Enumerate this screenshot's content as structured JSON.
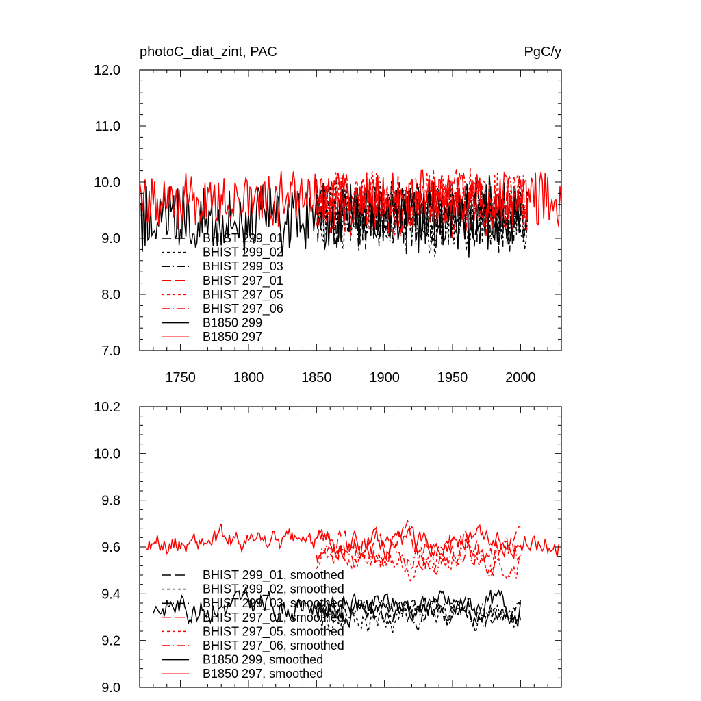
{
  "chart_data": [
    {
      "type": "line",
      "title": "photoC_diat_zint, PAC",
      "units": "PgC/y",
      "xlabel": "",
      "ylabel": "",
      "xlim": [
        1720,
        2030
      ],
      "ylim": [
        7.0,
        12.0
      ],
      "x_ticks": [
        1750,
        1800,
        1850,
        1900,
        1950,
        2000
      ],
      "x_tick_labels": [
        "1750",
        "1800",
        "1850",
        "1900",
        "1950",
        "2000"
      ],
      "y_ticks": [
        7.0,
        8.0,
        9.0,
        10.0,
        11.0,
        12.0
      ],
      "y_tick_labels": [
        "7.0",
        "8.0",
        "9.0",
        "10.0",
        "11.0",
        "12.0"
      ],
      "legend_position": "lower-left",
      "series": [
        {
          "name": "BHIST 299_01",
          "color": "#000000",
          "dash": "long-dash",
          "start": 1850,
          "end": 2005,
          "mean": 9.45,
          "amp": 0.55,
          "seed": 11
        },
        {
          "name": "BHIST 299_02",
          "color": "#000000",
          "dash": "short-dash",
          "start": 1850,
          "end": 2005,
          "mean": 9.4,
          "amp": 0.6,
          "seed": 23
        },
        {
          "name": "BHIST 299_03",
          "color": "#000000",
          "dash": "dash-dot",
          "start": 1850,
          "end": 2005,
          "mean": 9.45,
          "amp": 0.55,
          "seed": 37
        },
        {
          "name": "BHIST 297_01",
          "color": "#ff0000",
          "dash": "long-dash",
          "start": 1850,
          "end": 2005,
          "mean": 9.65,
          "amp": 0.5,
          "seed": 41
        },
        {
          "name": "BHIST 297_05",
          "color": "#ff0000",
          "dash": "short-dash",
          "start": 1850,
          "end": 2005,
          "mean": 9.65,
          "amp": 0.5,
          "seed": 53
        },
        {
          "name": "BHIST 297_06",
          "color": "#ff0000",
          "dash": "dash-dot",
          "start": 1850,
          "end": 2005,
          "mean": 9.6,
          "amp": 0.5,
          "seed": 67
        },
        {
          "name": "B1850 299",
          "color": "#000000",
          "dash": "solid",
          "start": 1720,
          "end": 2000,
          "mean": 9.35,
          "amp": 0.55,
          "seed": 79
        },
        {
          "name": "B1850 297",
          "color": "#ff0000",
          "dash": "solid",
          "start": 1720,
          "end": 2030,
          "mean": 9.7,
          "amp": 0.45,
          "seed": 97
        }
      ]
    },
    {
      "type": "line",
      "title": "",
      "xlabel": "",
      "ylabel": "",
      "xlim": [
        1720,
        2030
      ],
      "ylim": [
        9.0,
        10.2
      ],
      "x_ticks": [
        1750,
        1800,
        1850,
        1900,
        1950,
        2000
      ],
      "y_ticks": [
        9.0,
        9.2,
        9.4,
        9.6,
        9.8,
        10.0,
        10.2
      ],
      "y_tick_labels": [
        "9.0",
        "9.2",
        "9.4",
        "9.6",
        "9.8",
        "10.0",
        "10.2"
      ],
      "legend_position": "lower-left",
      "series": [
        {
          "name": "BHIST 299_01, smoothed",
          "color": "#000000",
          "dash": "long-dash",
          "start": 1850,
          "end": 2000,
          "mean": 9.33,
          "amp": 0.12,
          "seed": 13
        },
        {
          "name": "BHIST 299_02, smoothed",
          "color": "#000000",
          "dash": "short-dash",
          "start": 1850,
          "end": 2000,
          "mean": 9.3,
          "amp": 0.13,
          "seed": 29
        },
        {
          "name": "BHIST 299_03, smoothed",
          "color": "#000000",
          "dash": "dash-dot",
          "start": 1850,
          "end": 2000,
          "mean": 9.32,
          "amp": 0.12,
          "seed": 31
        },
        {
          "name": "BHIST 297_01, smoothed",
          "color": "#ff0000",
          "dash": "long-dash",
          "start": 1850,
          "end": 2000,
          "mean": 9.62,
          "amp": 0.14,
          "seed": 43
        },
        {
          "name": "BHIST 297_05, smoothed",
          "color": "#ff0000",
          "dash": "short-dash",
          "start": 1850,
          "end": 2000,
          "mean": 9.55,
          "amp": 0.15,
          "seed": 59
        },
        {
          "name": "BHIST 297_06, smoothed",
          "color": "#ff0000",
          "dash": "dash-dot",
          "start": 1850,
          "end": 2000,
          "mean": 9.55,
          "amp": 0.14,
          "seed": 61
        },
        {
          "name": "B1850 299, smoothed",
          "color": "#000000",
          "dash": "solid",
          "start": 1730,
          "end": 2000,
          "mean": 9.35,
          "amp": 0.14,
          "seed": 83
        },
        {
          "name": "B1850 297, smoothed",
          "color": "#ff0000",
          "dash": "solid",
          "start": 1725,
          "end": 2028,
          "mean": 9.62,
          "amp": 0.12,
          "seed": 89
        }
      ]
    }
  ]
}
